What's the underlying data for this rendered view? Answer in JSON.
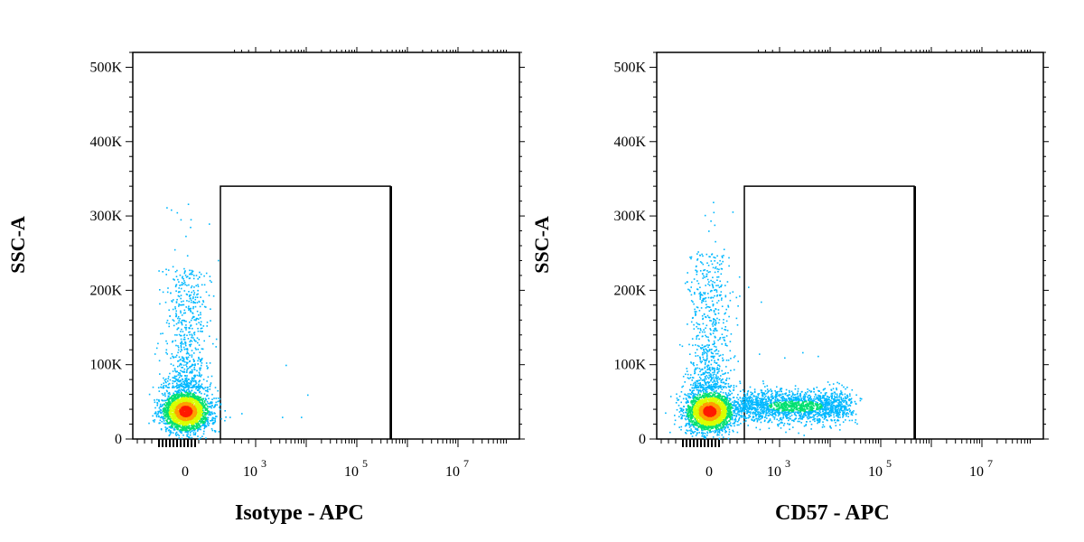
{
  "chart_data": [
    {
      "type": "scatter",
      "title": "",
      "xlabel": "Isotype - APC",
      "ylabel": "SSC-A",
      "x_scale": "biexponential",
      "y_ticks": [
        "0",
        "100K",
        "200K",
        "300K",
        "400K",
        "500K"
      ],
      "y_tick_values": [
        0,
        100000,
        200000,
        300000,
        400000,
        500000
      ],
      "ylim": [
        0,
        520000
      ],
      "x_ticks": [
        "0",
        "10^3",
        "10^5",
        "10^7"
      ],
      "gate": {
        "x_from": "~300",
        "x_to": "~4x10^5",
        "y_from": 0,
        "y_to": 340000
      },
      "populations": [
        {
          "name": "negative cluster",
          "x_center": 0,
          "y_center": 38000,
          "density": "high"
        },
        {
          "name": "negative high-SSC tail",
          "x_center": 0,
          "y_range": [
            80000,
            320000
          ],
          "density": "low"
        }
      ],
      "gated_events_note": "very few events in gate"
    },
    {
      "type": "scatter",
      "title": "",
      "xlabel": "CD57 - APC",
      "ylabel": "SSC-A",
      "x_scale": "biexponential",
      "y_ticks": [
        "0",
        "100K",
        "200K",
        "300K",
        "400K",
        "500K"
      ],
      "y_tick_values": [
        0,
        100000,
        200000,
        300000,
        400000,
        500000
      ],
      "ylim": [
        0,
        520000
      ],
      "x_ticks": [
        "0",
        "10^3",
        "10^5",
        "10^7"
      ],
      "gate": {
        "x_from": "~300",
        "x_to": "~4x10^5",
        "y_from": 0,
        "y_to": 340000
      },
      "populations": [
        {
          "name": "negative cluster",
          "x_center": 0,
          "y_center": 38000,
          "density": "high"
        },
        {
          "name": "negative high-SSC tail",
          "x_center": 0,
          "y_range": [
            80000,
            270000
          ],
          "density": "low"
        },
        {
          "name": "CD57 positive",
          "x_range": [
            300,
            60000
          ],
          "y_center": 45000,
          "density": "medium"
        }
      ]
    }
  ]
}
